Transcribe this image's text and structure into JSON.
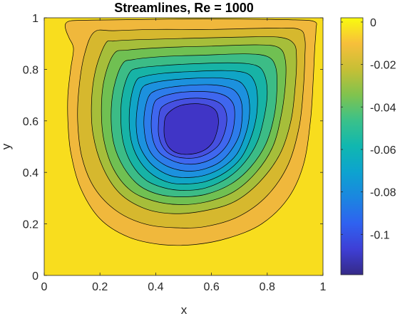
{
  "chart_data": {
    "type": "contour",
    "title": "Streamlines, Re = 1000",
    "xlabel": "x",
    "ylabel": "y",
    "xlim": [
      0,
      1
    ],
    "ylim": [
      0,
      1
    ],
    "xticks": [
      "0",
      "0.2",
      "0.4",
      "0.6",
      "0.8",
      "1"
    ],
    "yticks": [
      "0",
      "0.2",
      "0.4",
      "0.6",
      "0.8",
      "1"
    ],
    "xtick_values": [
      0,
      0.2,
      0.4,
      0.6,
      0.8,
      1
    ],
    "ytick_values": [
      0,
      0.2,
      0.4,
      0.6,
      0.8,
      1
    ],
    "colormap": "parula",
    "colorbar": {
      "range": [
        -0.119,
        0.002
      ],
      "tick_values": [
        0,
        -0.02,
        -0.04,
        -0.06,
        -0.08,
        -0.1
      ],
      "tick_labels": [
        "0",
        "-0.02",
        "-0.04",
        "-0.06",
        "-0.08",
        "-0.1"
      ]
    },
    "vortex_center": {
      "x": 0.53,
      "y": 0.565
    },
    "grid": false,
    "contour_levels": [
      {
        "level": -0.001,
        "fill": "#F0B83C",
        "points": [
          [
            0.075,
            0.97
          ],
          [
            0.08,
            0.945
          ],
          [
            0.09,
            0.92
          ],
          [
            0.105,
            0.88
          ],
          [
            0.095,
            0.8
          ],
          [
            0.085,
            0.7
          ],
          [
            0.085,
            0.6
          ],
          [
            0.095,
            0.48
          ],
          [
            0.13,
            0.34
          ],
          [
            0.2,
            0.22
          ],
          [
            0.3,
            0.15
          ],
          [
            0.42,
            0.12
          ],
          [
            0.54,
            0.12
          ],
          [
            0.66,
            0.145
          ],
          [
            0.78,
            0.2
          ],
          [
            0.875,
            0.3
          ],
          [
            0.93,
            0.43
          ],
          [
            0.955,
            0.6
          ],
          [
            0.965,
            0.76
          ],
          [
            0.97,
            0.875
          ],
          [
            0.975,
            0.955
          ],
          [
            0.97,
            0.985
          ],
          [
            0.9,
            0.992
          ],
          [
            0.7,
            0.995
          ],
          [
            0.45,
            0.995
          ],
          [
            0.25,
            0.992
          ],
          [
            0.12,
            0.99
          ],
          [
            0.085,
            0.985
          ]
        ]
      },
      {
        "level": -0.01,
        "fill": "#D6B82E",
        "points": [
          [
            0.18,
            0.945
          ],
          [
            0.145,
            0.86
          ],
          [
            0.125,
            0.73
          ],
          [
            0.12,
            0.6
          ],
          [
            0.135,
            0.46
          ],
          [
            0.18,
            0.34
          ],
          [
            0.26,
            0.25
          ],
          [
            0.36,
            0.2
          ],
          [
            0.47,
            0.185
          ],
          [
            0.58,
            0.19
          ],
          [
            0.7,
            0.23
          ],
          [
            0.8,
            0.31
          ],
          [
            0.875,
            0.43
          ],
          [
            0.915,
            0.58
          ],
          [
            0.93,
            0.73
          ],
          [
            0.935,
            0.85
          ],
          [
            0.935,
            0.915
          ],
          [
            0.915,
            0.955
          ],
          [
            0.82,
            0.96
          ],
          [
            0.6,
            0.955
          ],
          [
            0.4,
            0.955
          ],
          [
            0.25,
            0.95
          ]
        ]
      },
      {
        "level": -0.02,
        "fill": "#A6BE3A",
        "points": [
          [
            0.22,
            0.9
          ],
          [
            0.185,
            0.8
          ],
          [
            0.17,
            0.68
          ],
          [
            0.175,
            0.55
          ],
          [
            0.21,
            0.42
          ],
          [
            0.27,
            0.32
          ],
          [
            0.36,
            0.26
          ],
          [
            0.46,
            0.24
          ],
          [
            0.57,
            0.25
          ],
          [
            0.68,
            0.285
          ],
          [
            0.77,
            0.36
          ],
          [
            0.845,
            0.47
          ],
          [
            0.885,
            0.6
          ],
          [
            0.9,
            0.73
          ],
          [
            0.905,
            0.84
          ],
          [
            0.895,
            0.9
          ],
          [
            0.84,
            0.925
          ],
          [
            0.7,
            0.925
          ],
          [
            0.5,
            0.92
          ],
          [
            0.33,
            0.915
          ],
          [
            0.25,
            0.91
          ]
        ]
      },
      {
        "level": -0.03,
        "fill": "#70C052",
        "points": [
          [
            0.25,
            0.86
          ],
          [
            0.215,
            0.76
          ],
          [
            0.205,
            0.64
          ],
          [
            0.215,
            0.52
          ],
          [
            0.25,
            0.41
          ],
          [
            0.31,
            0.33
          ],
          [
            0.39,
            0.29
          ],
          [
            0.48,
            0.275
          ],
          [
            0.58,
            0.285
          ],
          [
            0.68,
            0.325
          ],
          [
            0.76,
            0.4
          ],
          [
            0.82,
            0.5
          ],
          [
            0.85,
            0.62
          ],
          [
            0.865,
            0.74
          ],
          [
            0.865,
            0.835
          ],
          [
            0.84,
            0.885
          ],
          [
            0.76,
            0.895
          ],
          [
            0.6,
            0.89
          ],
          [
            0.44,
            0.885
          ],
          [
            0.3,
            0.875
          ]
        ]
      },
      {
        "level": -0.04,
        "fill": "#3CBC86",
        "points": [
          [
            0.28,
            0.82
          ],
          [
            0.25,
            0.73
          ],
          [
            0.24,
            0.62
          ],
          [
            0.25,
            0.51
          ],
          [
            0.285,
            0.42
          ],
          [
            0.34,
            0.35
          ],
          [
            0.41,
            0.315
          ],
          [
            0.49,
            0.305
          ],
          [
            0.58,
            0.315
          ],
          [
            0.67,
            0.355
          ],
          [
            0.74,
            0.42
          ],
          [
            0.795,
            0.51
          ],
          [
            0.825,
            0.62
          ],
          [
            0.835,
            0.73
          ],
          [
            0.83,
            0.81
          ],
          [
            0.8,
            0.85
          ],
          [
            0.72,
            0.86
          ],
          [
            0.57,
            0.855
          ],
          [
            0.43,
            0.85
          ],
          [
            0.32,
            0.838
          ]
        ]
      },
      {
        "level": -0.05,
        "fill": "#17B3A6",
        "points": [
          [
            0.305,
            0.785
          ],
          [
            0.28,
            0.7
          ],
          [
            0.275,
            0.6
          ],
          [
            0.285,
            0.51
          ],
          [
            0.315,
            0.43
          ],
          [
            0.365,
            0.37
          ],
          [
            0.43,
            0.34
          ],
          [
            0.5,
            0.33
          ],
          [
            0.58,
            0.34
          ],
          [
            0.66,
            0.38
          ],
          [
            0.72,
            0.44
          ],
          [
            0.765,
            0.52
          ],
          [
            0.79,
            0.62
          ],
          [
            0.8,
            0.71
          ],
          [
            0.79,
            0.78
          ],
          [
            0.76,
            0.815
          ],
          [
            0.68,
            0.825
          ],
          [
            0.55,
            0.822
          ],
          [
            0.43,
            0.815
          ],
          [
            0.34,
            0.805
          ]
        ]
      },
      {
        "level": -0.06,
        "fill": "#10A5C6",
        "points": [
          [
            0.33,
            0.755
          ],
          [
            0.31,
            0.68
          ],
          [
            0.305,
            0.59
          ],
          [
            0.315,
            0.51
          ],
          [
            0.345,
            0.44
          ],
          [
            0.39,
            0.39
          ],
          [
            0.45,
            0.36
          ],
          [
            0.51,
            0.355
          ],
          [
            0.58,
            0.365
          ],
          [
            0.65,
            0.4
          ],
          [
            0.705,
            0.455
          ],
          [
            0.74,
            0.53
          ],
          [
            0.76,
            0.61
          ],
          [
            0.765,
            0.69
          ],
          [
            0.755,
            0.75
          ],
          [
            0.725,
            0.785
          ],
          [
            0.65,
            0.795
          ],
          [
            0.54,
            0.792
          ],
          [
            0.43,
            0.785
          ],
          [
            0.36,
            0.773
          ]
        ]
      },
      {
        "level": -0.07,
        "fill": "#1C91DE",
        "points": [
          [
            0.35,
            0.725
          ],
          [
            0.335,
            0.66
          ],
          [
            0.33,
            0.58
          ],
          [
            0.34,
            0.51
          ],
          [
            0.37,
            0.45
          ],
          [
            0.41,
            0.41
          ],
          [
            0.46,
            0.385
          ],
          [
            0.52,
            0.38
          ],
          [
            0.58,
            0.39
          ],
          [
            0.64,
            0.42
          ],
          [
            0.69,
            0.47
          ],
          [
            0.72,
            0.54
          ],
          [
            0.735,
            0.61
          ],
          [
            0.735,
            0.68
          ],
          [
            0.72,
            0.73
          ],
          [
            0.69,
            0.757
          ],
          [
            0.62,
            0.767
          ],
          [
            0.53,
            0.765
          ],
          [
            0.44,
            0.757
          ],
          [
            0.38,
            0.745
          ]
        ]
      },
      {
        "level": -0.08,
        "fill": "#2D7CEB",
        "points": [
          [
            0.375,
            0.695
          ],
          [
            0.36,
            0.635
          ],
          [
            0.358,
            0.575
          ],
          [
            0.368,
            0.51
          ],
          [
            0.39,
            0.465
          ],
          [
            0.43,
            0.43
          ],
          [
            0.48,
            0.41
          ],
          [
            0.53,
            0.405
          ],
          [
            0.58,
            0.415
          ],
          [
            0.63,
            0.44
          ],
          [
            0.67,
            0.485
          ],
          [
            0.7,
            0.545
          ],
          [
            0.71,
            0.61
          ],
          [
            0.708,
            0.67
          ],
          [
            0.69,
            0.71
          ],
          [
            0.66,
            0.73
          ],
          [
            0.6,
            0.74
          ],
          [
            0.52,
            0.738
          ],
          [
            0.45,
            0.73
          ],
          [
            0.4,
            0.717
          ]
        ]
      },
      {
        "level": -0.09,
        "fill": "#3F67EF",
        "points": [
          [
            0.395,
            0.67
          ],
          [
            0.385,
            0.615
          ],
          [
            0.385,
            0.56
          ],
          [
            0.395,
            0.51
          ],
          [
            0.415,
            0.475
          ],
          [
            0.45,
            0.45
          ],
          [
            0.49,
            0.435
          ],
          [
            0.535,
            0.432
          ],
          [
            0.58,
            0.442
          ],
          [
            0.62,
            0.465
          ],
          [
            0.655,
            0.505
          ],
          [
            0.675,
            0.555
          ],
          [
            0.683,
            0.61
          ],
          [
            0.68,
            0.66
          ],
          [
            0.66,
            0.69
          ],
          [
            0.625,
            0.707
          ],
          [
            0.57,
            0.714
          ],
          [
            0.5,
            0.712
          ],
          [
            0.45,
            0.703
          ],
          [
            0.415,
            0.69
          ]
        ]
      },
      {
        "level": -0.1,
        "fill": "#4650E0",
        "points": [
          [
            0.415,
            0.64
          ],
          [
            0.41,
            0.595
          ],
          [
            0.41,
            0.55
          ],
          [
            0.42,
            0.51
          ],
          [
            0.44,
            0.48
          ],
          [
            0.47,
            0.462
          ],
          [
            0.51,
            0.455
          ],
          [
            0.55,
            0.458
          ],
          [
            0.59,
            0.475
          ],
          [
            0.625,
            0.505
          ],
          [
            0.645,
            0.548
          ],
          [
            0.655,
            0.6
          ],
          [
            0.65,
            0.64
          ],
          [
            0.632,
            0.667
          ],
          [
            0.6,
            0.682
          ],
          [
            0.55,
            0.688
          ],
          [
            0.5,
            0.685
          ],
          [
            0.46,
            0.675
          ],
          [
            0.43,
            0.66
          ]
        ]
      },
      {
        "level": -0.11,
        "fill": "#4035C6",
        "points": [
          [
            0.435,
            0.615
          ],
          [
            0.43,
            0.575
          ],
          [
            0.432,
            0.535
          ],
          [
            0.445,
            0.5
          ],
          [
            0.47,
            0.478
          ],
          [
            0.505,
            0.47
          ],
          [
            0.545,
            0.474
          ],
          [
            0.58,
            0.49
          ],
          [
            0.605,
            0.518
          ],
          [
            0.62,
            0.56
          ],
          [
            0.625,
            0.6
          ],
          [
            0.618,
            0.635
          ],
          [
            0.598,
            0.655
          ],
          [
            0.565,
            0.665
          ],
          [
            0.525,
            0.666
          ],
          [
            0.485,
            0.658
          ],
          [
            0.455,
            0.64
          ]
        ]
      }
    ]
  }
}
